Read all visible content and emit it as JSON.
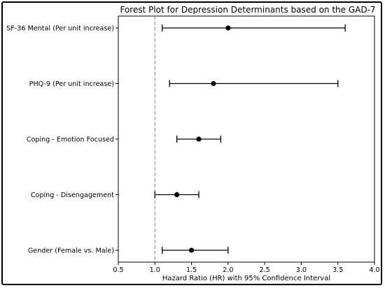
{
  "chart_data": {
    "type": "forest",
    "title": "Forest Plot for Depression Determinants based on the GAD-7",
    "xlabel": "Hazard Ratio (HR) with 95% Confidence Interval",
    "ylabel": "",
    "xlim": [
      0.5,
      4.0
    ],
    "x_ticks": [
      0.5,
      1.0,
      1.5,
      2.0,
      2.5,
      3.0,
      3.5,
      4.0
    ],
    "x_tick_labels": [
      "0.5",
      "1.0",
      "1.5",
      "2.0",
      "2.5",
      "3.0",
      "3.5",
      "4.0"
    ],
    "reference_line": 1.0,
    "grid": false,
    "rows": [
      {
        "label": "SF-36 Mental (Per unit increase)",
        "hr": 2.0,
        "ci_low": 1.1,
        "ci_high": 3.6
      },
      {
        "label": "PHQ-9 (Per unit increase)",
        "hr": 1.8,
        "ci_low": 1.2,
        "ci_high": 3.5
      },
      {
        "label": "Coping - Emotion Focused",
        "hr": 1.6,
        "ci_low": 1.3,
        "ci_high": 1.9
      },
      {
        "label": "Coping - Disengagement",
        "hr": 1.3,
        "ci_low": 1.0,
        "ci_high": 1.6
      },
      {
        "label": "Gender (Female vs. Male)",
        "hr": 1.5,
        "ci_low": 1.1,
        "ci_high": 2.0
      }
    ],
    "colors": {
      "marker": "#000000",
      "whisker": "#000000",
      "reference": "#808080",
      "axes": "#000000"
    }
  }
}
